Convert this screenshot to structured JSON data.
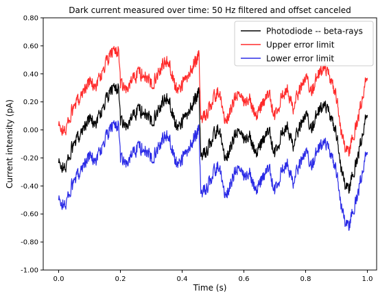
{
  "chart_data": {
    "type": "line",
    "title": "Dark current measured over time: 50 Hz filtered and offset canceled",
    "xlabel": "Time (s)",
    "ylabel": "Current intensity (pA)",
    "xlim": [
      -0.05,
      1.03
    ],
    "ylim": [
      -1.0,
      0.8
    ],
    "xticks": [
      0.0,
      0.2,
      0.4,
      0.6,
      0.8,
      1.0
    ],
    "xtick_labels": [
      "0.0",
      "0.2",
      "0.4",
      "0.6",
      "0.8",
      "1.0"
    ],
    "yticks": [
      -1.0,
      -0.8,
      -0.6,
      -0.4,
      -0.2,
      0.0,
      0.2,
      0.4,
      0.6,
      0.8
    ],
    "ytick_labels": [
      "-1.00",
      "-0.80",
      "-0.60",
      "-0.40",
      "-0.20",
      "0.00",
      "0.20",
      "0.40",
      "0.60",
      "0.80"
    ],
    "grid": false,
    "legend_position": "top-right",
    "error_offset": 0.265,
    "x": [
      0.0,
      0.02,
      0.04,
      0.06,
      0.08,
      0.1,
      0.12,
      0.14,
      0.16,
      0.18,
      0.195,
      0.2,
      0.22,
      0.24,
      0.26,
      0.28,
      0.3,
      0.32,
      0.34,
      0.36,
      0.38,
      0.4,
      0.42,
      0.44,
      0.455,
      0.46,
      0.48,
      0.5,
      0.52,
      0.54,
      0.56,
      0.58,
      0.6,
      0.62,
      0.64,
      0.66,
      0.68,
      0.7,
      0.72,
      0.74,
      0.76,
      0.78,
      0.8,
      0.82,
      0.84,
      0.86,
      0.88,
      0.9,
      0.92,
      0.94,
      0.96,
      0.98,
      1.0
    ],
    "series": [
      {
        "name": "Photodiode -- beta-rays",
        "color": "#000000",
        "values": [
          -0.24,
          -0.28,
          -0.15,
          -0.07,
          0.02,
          0.08,
          0.05,
          0.14,
          0.24,
          0.31,
          0.3,
          0.05,
          0.02,
          0.1,
          0.15,
          0.12,
          0.06,
          0.13,
          0.22,
          0.2,
          0.02,
          0.06,
          0.12,
          0.22,
          0.28,
          -0.2,
          -0.15,
          -0.05,
          0.02,
          -0.22,
          -0.1,
          0.0,
          -0.08,
          -0.03,
          -0.17,
          -0.08,
          0.0,
          -0.18,
          -0.05,
          0.05,
          -0.12,
          0.02,
          0.1,
          0.02,
          0.12,
          0.17,
          0.1,
          -0.03,
          -0.35,
          -0.42,
          -0.27,
          -0.08,
          0.15
        ]
      },
      {
        "name": "Upper error limit",
        "color": "#ff2a2a",
        "values": [
          0.025,
          -0.015,
          0.115,
          0.195,
          0.285,
          0.345,
          0.315,
          0.405,
          0.505,
          0.575,
          0.565,
          0.315,
          0.285,
          0.365,
          0.415,
          0.385,
          0.325,
          0.395,
          0.485,
          0.465,
          0.285,
          0.325,
          0.385,
          0.485,
          0.545,
          0.065,
          0.115,
          0.215,
          0.285,
          0.045,
          0.165,
          0.265,
          0.185,
          0.235,
          0.095,
          0.185,
          0.265,
          0.085,
          0.215,
          0.315,
          0.145,
          0.285,
          0.365,
          0.285,
          0.385,
          0.435,
          0.365,
          0.235,
          -0.085,
          -0.155,
          -0.005,
          0.185,
          0.415
        ]
      },
      {
        "name": "Lower error limit",
        "color": "#2a2ae6",
        "values": [
          -0.505,
          -0.545,
          -0.415,
          -0.335,
          -0.245,
          -0.185,
          -0.215,
          -0.125,
          -0.025,
          0.045,
          0.035,
          -0.215,
          -0.245,
          -0.165,
          -0.115,
          -0.145,
          -0.205,
          -0.135,
          -0.045,
          -0.065,
          -0.245,
          -0.205,
          -0.145,
          -0.045,
          0.015,
          -0.465,
          -0.415,
          -0.315,
          -0.245,
          -0.485,
          -0.365,
          -0.265,
          -0.345,
          -0.295,
          -0.435,
          -0.345,
          -0.265,
          -0.445,
          -0.315,
          -0.215,
          -0.385,
          -0.245,
          -0.165,
          -0.245,
          -0.145,
          -0.095,
          -0.165,
          -0.295,
          -0.615,
          -0.685,
          -0.535,
          -0.345,
          -0.115
        ]
      }
    ]
  }
}
